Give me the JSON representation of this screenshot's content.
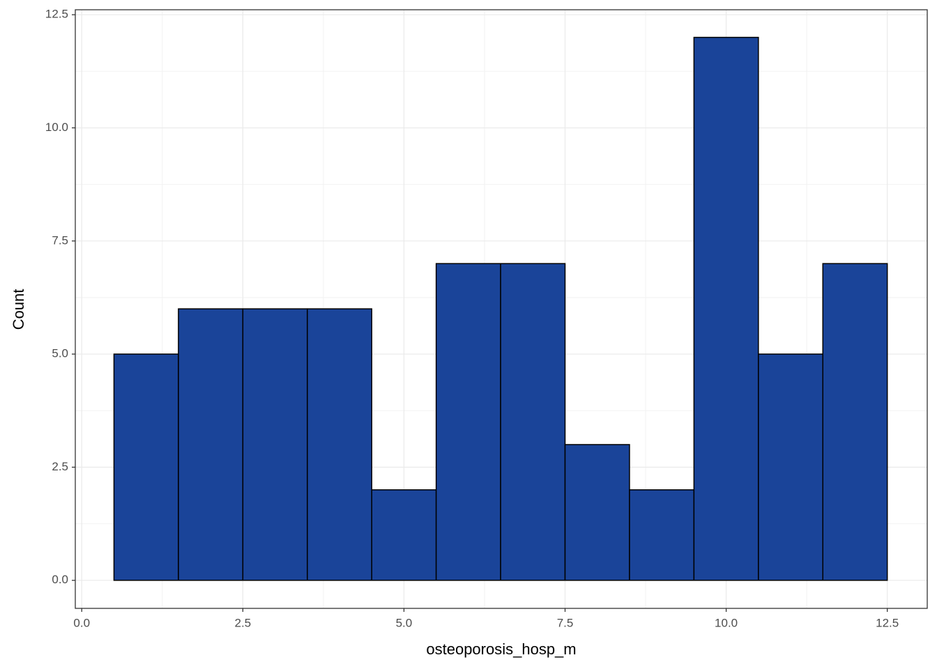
{
  "chart_data": {
    "type": "histogram",
    "x_label": "osteoporosis_hosp_m",
    "y_label": "Count",
    "bins": [
      0.5,
      1.5,
      2.5,
      3.5,
      4.5,
      5.5,
      6.5,
      7.5,
      8.5,
      9.5,
      10.5,
      11.5,
      12.5
    ],
    "values": [
      5,
      6,
      6,
      6,
      2,
      7,
      7,
      3,
      2,
      12,
      5,
      7
    ],
    "color": "#1a4499",
    "edgecolor": "#000000",
    "xlim": [
      -0.1,
      13.12
    ],
    "ylim": [
      -0.62,
      12.61
    ],
    "xticks": [
      {
        "value": 0,
        "label": "0.0"
      },
      {
        "value": 2.5,
        "label": "2.5"
      },
      {
        "value": 5,
        "label": "5.0"
      },
      {
        "value": 7.5,
        "label": "7.5"
      },
      {
        "value": 10,
        "label": "10.0"
      },
      {
        "value": 12.5,
        "label": "12.5"
      }
    ],
    "yticks": [
      {
        "value": 0,
        "label": "0.0"
      },
      {
        "value": 2.5,
        "label": "2.5"
      },
      {
        "value": 5,
        "label": "5.0"
      },
      {
        "value": 7.5,
        "label": "7.5"
      },
      {
        "value": 10,
        "label": "10.0"
      },
      {
        "value": 12.5,
        "label": "12.5"
      }
    ],
    "grid": true
  }
}
